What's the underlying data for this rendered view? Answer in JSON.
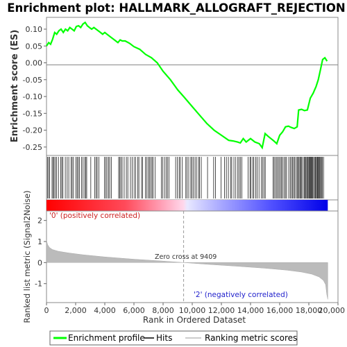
{
  "chart_data": [
    {
      "type": "line",
      "title": "Enrichment plot: HALLMARK_ALLOGRAFT_REJECTION",
      "ylabel": "Enrichment score (ES)",
      "xlim": [
        0,
        19300
      ],
      "ylim": [
        -0.275,
        0.135
      ],
      "yticks": [
        0.1,
        0.05,
        0.0,
        -0.05,
        -0.1,
        -0.15,
        -0.2,
        -0.25
      ],
      "ytick_labels": [
        "0.10",
        "0.05",
        "0.00",
        "-0.05",
        "-0.10",
        "-0.15",
        "-0.20",
        "-0.25"
      ],
      "grid": false,
      "series": [
        {
          "name": "Enrichment profile",
          "color": "#00ff00",
          "x": [
            0,
            150,
            280,
            420,
            560,
            700,
            850,
            1000,
            1150,
            1300,
            1450,
            1600,
            1750,
            1900,
            2050,
            2200,
            2350,
            2500,
            2650,
            2800,
            2950,
            3100,
            3250,
            3400,
            3550,
            3700,
            3850,
            4000,
            4150,
            4300,
            4450,
            4600,
            4750,
            4900,
            5050,
            5200,
            5400,
            5700,
            6000,
            6400,
            6800,
            7200,
            7600,
            8000,
            8500,
            9000,
            9409,
            10000,
            10500,
            11000,
            11500,
            12000,
            12500,
            12800,
            13100,
            13300,
            13500,
            13700,
            14000,
            14300,
            14600,
            14800,
            15000,
            15200,
            15400,
            15600,
            15800,
            16000,
            16200,
            16400,
            16600,
            16800,
            17000,
            17200,
            17300,
            17500,
            17700,
            17900,
            18100,
            18300,
            18500,
            18650,
            18800,
            18950,
            19100,
            19250
          ],
          "y": [
            0.05,
            0.06,
            0.055,
            0.07,
            0.09,
            0.085,
            0.095,
            0.1,
            0.09,
            0.1,
            0.095,
            0.105,
            0.1,
            0.095,
            0.108,
            0.11,
            0.105,
            0.115,
            0.12,
            0.11,
            0.105,
            0.1,
            0.105,
            0.1,
            0.095,
            0.09,
            0.085,
            0.09,
            0.085,
            0.08,
            0.075,
            0.07,
            0.065,
            0.06,
            0.068,
            0.065,
            0.065,
            0.058,
            0.048,
            0.04,
            0.025,
            0.015,
            0.0,
            -0.025,
            -0.05,
            -0.08,
            -0.1,
            -0.13,
            -0.155,
            -0.18,
            -0.2,
            -0.215,
            -0.23,
            -0.232,
            -0.235,
            -0.238,
            -0.225,
            -0.235,
            -0.225,
            -0.235,
            -0.24,
            -0.252,
            -0.21,
            -0.218,
            -0.225,
            -0.232,
            -0.24,
            -0.215,
            -0.205,
            -0.19,
            -0.188,
            -0.192,
            -0.195,
            -0.19,
            -0.14,
            -0.138,
            -0.142,
            -0.14,
            -0.105,
            -0.09,
            -0.07,
            -0.05,
            -0.02,
            0.01,
            0.015,
            0.005
          ]
        }
      ]
    },
    {
      "type": "bar",
      "ylabel": "Ranked list metric (Signal2Noise)",
      "xlabel": "Rank in Ordered Dataset",
      "xlim": [
        0,
        20000
      ],
      "ylim": [
        -1.9,
        2.45
      ],
      "yticks": [
        2,
        1,
        0,
        -1
      ],
      "ytick_labels": [
        "2",
        "1",
        "0",
        "-1"
      ],
      "xticks": [
        0,
        2000,
        4000,
        6000,
        8000,
        10000,
        12000,
        14000,
        16000,
        18000,
        20000
      ],
      "xtick_labels": [
        "0",
        "2,000",
        "4,000",
        "6,000",
        "8,000",
        "10,000",
        "12,000",
        "14,000",
        "16,000",
        "18,000",
        "20,000"
      ],
      "total_ranks": 19300,
      "zero_cross": 9409,
      "metric_profile": {
        "x": [
          0,
          80,
          200,
          400,
          800,
          1500,
          2500,
          4000,
          6000,
          8000,
          9409,
          11000,
          13000,
          15000,
          16500,
          17500,
          18200,
          18700,
          19000,
          19150,
          19230,
          19300
        ],
        "y": [
          1.05,
          0.85,
          0.72,
          0.62,
          0.54,
          0.46,
          0.37,
          0.27,
          0.16,
          0.07,
          0.0,
          -0.08,
          -0.17,
          -0.27,
          -0.36,
          -0.45,
          -0.55,
          -0.68,
          -0.85,
          -1.05,
          -1.5,
          -1.75
        ]
      },
      "hit_ranks": [
        60,
        140,
        220,
        380,
        450,
        520,
        610,
        700,
        820,
        980,
        1050,
        1130,
        1290,
        1420,
        1530,
        1680,
        1760,
        1850,
        2010,
        2100,
        2180,
        2270,
        2400,
        2510,
        2620,
        2700,
        2760,
        3040,
        3310,
        3400,
        3480,
        3600,
        3980,
        4070,
        4150,
        4260,
        4340,
        4460,
        4950,
        5030,
        5100,
        5190,
        5330,
        5480,
        5580,
        5760,
        5880,
        6010,
        6120,
        6270,
        6340,
        6520,
        6600,
        6780,
        6880,
        6990,
        7060,
        7150,
        7240,
        7320,
        7460,
        7880,
        7980,
        8100,
        8210,
        8300,
        8410,
        8860,
        8980,
        9100,
        9180,
        9320,
        9560,
        9640,
        9760,
        9900,
        9980,
        10080,
        10190,
        10290,
        10430,
        10500,
        10620,
        11050,
        11470,
        11600,
        11980,
        12210,
        12340,
        12480,
        12630,
        12710,
        12860,
        12990,
        13130,
        13220,
        13310,
        13410,
        13840,
        13960,
        14030,
        14150,
        14230,
        14360,
        14450,
        14580,
        14740,
        14830,
        14920,
        15010,
        15540,
        15620,
        15710,
        15800,
        15880,
        15960,
        16050,
        16130,
        16200,
        16300,
        16390,
        16470,
        16620,
        16720,
        16800,
        16880,
        16950,
        17020,
        17120,
        17200,
        17260,
        17330,
        17390,
        17450,
        17510,
        17590,
        17680,
        17740,
        17800,
        17860,
        17910,
        17960,
        18020,
        18070,
        18120,
        18170,
        18220,
        18270,
        18330,
        18390,
        18450,
        18510,
        18570,
        18610,
        18660,
        18710,
        18760,
        18810,
        18870,
        18930,
        19010
      ],
      "annotations": {
        "positive": "'0' (positively correlated)",
        "negative": "'2' (negatively correlated)",
        "zero_cross": "Zero cross at 9409"
      },
      "colors": {
        "positive": "#ff0000",
        "neutral_pos": "#ffc0e0",
        "neutral_neg": "#c8c8ff",
        "negative": "#0000ff",
        "metric_fill": "#bbbbbb"
      }
    }
  ],
  "legend": {
    "items": [
      {
        "label": "Enrichment profile",
        "color": "#00ff00"
      },
      {
        "label": "Hits",
        "color": "#000000"
      },
      {
        "label": "Ranking metric scores",
        "color": "#bbbbbb"
      }
    ]
  }
}
